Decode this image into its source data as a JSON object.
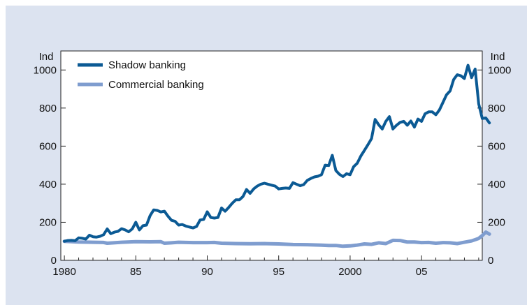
{
  "colors": {
    "background": "#dce3f0",
    "plot_bg": "#ffffff",
    "shadow": "#0b5a94",
    "commercial": "#7f9dcf"
  },
  "chart_data": {
    "type": "line",
    "title": "",
    "xlabel": "",
    "ylabel_left": "Ind",
    "ylabel_right": "Ind",
    "xlim": [
      1979.75,
      2009.25
    ],
    "ylim": [
      0,
      1100
    ],
    "yticks": [
      0,
      200,
      400,
      600,
      800,
      1000
    ],
    "xticks": [
      {
        "value": 1980,
        "label": "1980"
      },
      {
        "value": 1985,
        "label": "85"
      },
      {
        "value": 1990,
        "label": "90"
      },
      {
        "value": 1995,
        "label": "95"
      },
      {
        "value": 2000,
        "label": "2000"
      },
      {
        "value": 2005,
        "label": "05"
      }
    ],
    "grid": false,
    "legend": "top-left",
    "series": [
      {
        "name": "Shadow banking",
        "color": "#0b5a94",
        "points": [
          [
            1980.0,
            100
          ],
          [
            1980.25,
            104
          ],
          [
            1980.5,
            105
          ],
          [
            1980.75,
            103
          ],
          [
            1981.0,
            118
          ],
          [
            1981.25,
            116
          ],
          [
            1981.5,
            112
          ],
          [
            1981.75,
            132
          ],
          [
            1982.0,
            124
          ],
          [
            1982.25,
            122
          ],
          [
            1982.5,
            126
          ],
          [
            1982.75,
            135
          ],
          [
            1983.0,
            165
          ],
          [
            1983.25,
            140
          ],
          [
            1983.5,
            148
          ],
          [
            1983.75,
            152
          ],
          [
            1984.0,
            166
          ],
          [
            1984.25,
            160
          ],
          [
            1984.5,
            150
          ],
          [
            1984.75,
            165
          ],
          [
            1985.0,
            200
          ],
          [
            1985.25,
            160
          ],
          [
            1985.5,
            182
          ],
          [
            1985.75,
            185
          ],
          [
            1986.0,
            235
          ],
          [
            1986.25,
            265
          ],
          [
            1986.5,
            262
          ],
          [
            1986.75,
            254
          ],
          [
            1987.0,
            258
          ],
          [
            1987.25,
            232
          ],
          [
            1987.5,
            210
          ],
          [
            1987.75,
            205
          ],
          [
            1988.0,
            185
          ],
          [
            1988.25,
            188
          ],
          [
            1988.5,
            180
          ],
          [
            1988.75,
            175
          ],
          [
            1989.0,
            170
          ],
          [
            1989.25,
            178
          ],
          [
            1989.5,
            212
          ],
          [
            1989.75,
            215
          ],
          [
            1990.0,
            255
          ],
          [
            1990.25,
            225
          ],
          [
            1990.5,
            222
          ],
          [
            1990.75,
            225
          ],
          [
            1991.0,
            275
          ],
          [
            1991.25,
            258
          ],
          [
            1991.5,
            278
          ],
          [
            1991.75,
            300
          ],
          [
            1992.0,
            318
          ],
          [
            1992.25,
            318
          ],
          [
            1992.5,
            335
          ],
          [
            1992.75,
            372
          ],
          [
            1993.0,
            352
          ],
          [
            1993.25,
            375
          ],
          [
            1993.5,
            390
          ],
          [
            1993.75,
            400
          ],
          [
            1994.0,
            405
          ],
          [
            1994.25,
            400
          ],
          [
            1994.5,
            395
          ],
          [
            1994.75,
            390
          ],
          [
            1995.0,
            375
          ],
          [
            1995.25,
            378
          ],
          [
            1995.5,
            380
          ],
          [
            1995.75,
            378
          ],
          [
            1996.0,
            408
          ],
          [
            1996.25,
            400
          ],
          [
            1996.5,
            392
          ],
          [
            1996.75,
            398
          ],
          [
            1997.0,
            420
          ],
          [
            1997.25,
            430
          ],
          [
            1997.5,
            438
          ],
          [
            1997.75,
            442
          ],
          [
            1998.0,
            450
          ],
          [
            1998.25,
            500
          ],
          [
            1998.5,
            498
          ],
          [
            1998.75,
            552
          ],
          [
            1999.0,
            472
          ],
          [
            1999.25,
            452
          ],
          [
            1999.5,
            440
          ],
          [
            1999.75,
            455
          ],
          [
            2000.0,
            450
          ],
          [
            2000.25,
            492
          ],
          [
            2000.5,
            510
          ],
          [
            2000.75,
            548
          ],
          [
            2001.0,
            578
          ],
          [
            2001.25,
            608
          ],
          [
            2001.5,
            640
          ],
          [
            2001.75,
            740
          ],
          [
            2002.0,
            712
          ],
          [
            2002.25,
            690
          ],
          [
            2002.5,
            730
          ],
          [
            2002.75,
            755
          ],
          [
            2003.0,
            690
          ],
          [
            2003.25,
            710
          ],
          [
            2003.5,
            725
          ],
          [
            2003.75,
            730
          ],
          [
            2004.0,
            710
          ],
          [
            2004.25,
            732
          ],
          [
            2004.5,
            700
          ],
          [
            2004.75,
            742
          ],
          [
            2005.0,
            730
          ],
          [
            2005.25,
            770
          ],
          [
            2005.5,
            780
          ],
          [
            2005.75,
            780
          ],
          [
            2006.0,
            765
          ],
          [
            2006.25,
            790
          ],
          [
            2006.5,
            830
          ],
          [
            2006.75,
            870
          ],
          [
            2007.0,
            890
          ],
          [
            2007.25,
            950
          ],
          [
            2007.5,
            975
          ],
          [
            2007.75,
            970
          ],
          [
            2008.0,
            955
          ],
          [
            2008.25,
            1025
          ],
          [
            2008.5,
            960
          ],
          [
            2008.75,
            1005
          ],
          [
            2009.0,
            822
          ],
          [
            2009.25,
            745
          ],
          [
            2009.5,
            748
          ],
          [
            2009.75,
            722
          ]
        ]
      },
      {
        "name": "Commercial banking",
        "color": "#7f9dcf",
        "points": [
          [
            1980.0,
            100
          ],
          [
            1981.0,
            96
          ],
          [
            1982.0,
            95
          ],
          [
            1982.75,
            94
          ],
          [
            1983.0,
            90
          ],
          [
            1984.0,
            95
          ],
          [
            1985.0,
            98
          ],
          [
            1986.0,
            97
          ],
          [
            1986.75,
            98
          ],
          [
            1987.0,
            90
          ],
          [
            1987.5,
            92
          ],
          [
            1988.0,
            95
          ],
          [
            1989.0,
            93
          ],
          [
            1990.0,
            93
          ],
          [
            1990.5,
            94
          ],
          [
            1991.0,
            90
          ],
          [
            1992.0,
            88
          ],
          [
            1993.0,
            87
          ],
          [
            1994.0,
            88
          ],
          [
            1995.0,
            86
          ],
          [
            1996.0,
            83
          ],
          [
            1997.0,
            82
          ],
          [
            1998.0,
            80
          ],
          [
            1998.5,
            78
          ],
          [
            1999.0,
            78
          ],
          [
            1999.5,
            74
          ],
          [
            2000.0,
            76
          ],
          [
            2000.5,
            80
          ],
          [
            2001.0,
            86
          ],
          [
            2001.5,
            84
          ],
          [
            2002.0,
            92
          ],
          [
            2002.5,
            88
          ],
          [
            2003.0,
            105
          ],
          [
            2003.5,
            104
          ],
          [
            2004.0,
            96
          ],
          [
            2004.5,
            96
          ],
          [
            2005.0,
            93
          ],
          [
            2005.5,
            94
          ],
          [
            2006.0,
            90
          ],
          [
            2006.5,
            93
          ],
          [
            2007.0,
            92
          ],
          [
            2007.5,
            88
          ],
          [
            2008.0,
            95
          ],
          [
            2008.5,
            102
          ],
          [
            2009.0,
            115
          ],
          [
            2009.25,
            130
          ],
          [
            2009.5,
            148
          ],
          [
            2009.75,
            138
          ]
        ]
      }
    ]
  }
}
